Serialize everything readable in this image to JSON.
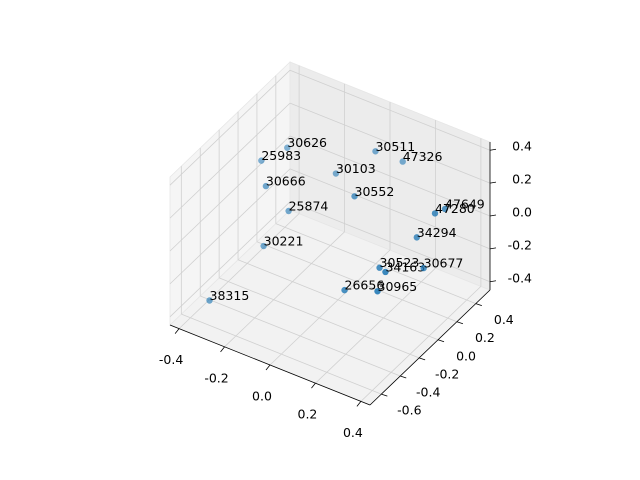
{
  "chart_data": {
    "type": "scatter3d",
    "color": "#1f77b4",
    "x": [
      -0.24,
      -0.3,
      -0.23,
      -0.18,
      -0.24,
      -0.37,
      -0.08,
      0.11,
      0.04,
      0.11,
      0.4,
      0.41,
      0.33,
      0.27,
      0.35,
      0.36,
      0.17,
      0.34
    ],
    "y": [
      0.04,
      -0.09,
      -0.21,
      -0.09,
      -0.21,
      -0.47,
      0.17,
      -0.09,
      0.3,
      0.42,
      0.17,
      0.04,
      0.04,
      -0.21,
      -0.34,
      0.04,
      -0.34,
      -0.4
    ],
    "z": [
      0.32,
      0.28,
      0.23,
      0.04,
      -0.14,
      -0.4,
      0.18,
      0.29,
      0.31,
      0.22,
      0.23,
      0.28,
      0.09,
      0.01,
      0.1,
      -0.08,
      -0.11,
      0.01
    ],
    "labels": [
      "30626",
      "25983",
      "30666",
      "25874",
      "30221",
      "38315",
      "30103",
      "30552",
      "30511",
      "47326",
      "47649",
      "47280",
      "34294",
      "30523",
      "34163",
      "30677",
      "26656",
      "30965"
    ],
    "xlim": [
      -0.44,
      0.44
    ],
    "ylim": [
      -0.72,
      0.55
    ],
    "zlim": [
      -0.45,
      0.45
    ],
    "xticks": [
      -0.4,
      -0.2,
      {
        "value": 0,
        "label": "0.0"
      },
      0.2,
      0.4
    ],
    "yticks": [
      -0.6,
      -0.4,
      -0.2,
      {
        "value": 0,
        "label": "0.0"
      },
      0.2,
      0.4
    ],
    "zticks": [
      -0.4,
      -0.2,
      {
        "value": 0,
        "label": "0.0"
      },
      0.2,
      0.4
    ],
    "grid": true
  }
}
